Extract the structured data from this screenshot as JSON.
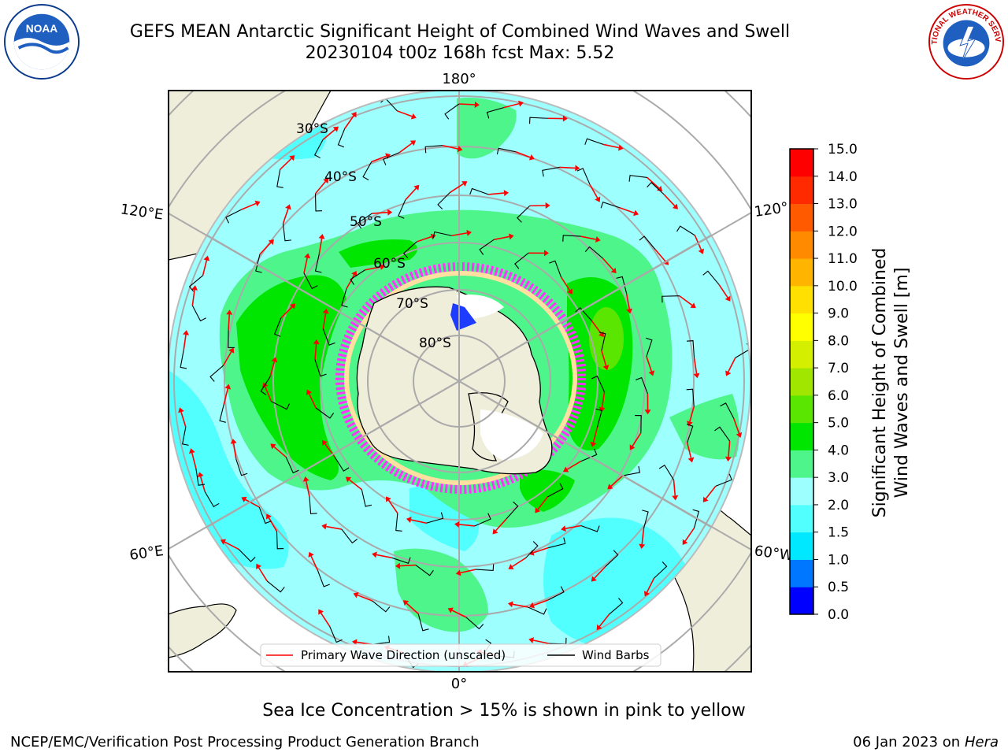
{
  "title_line1": "GEFS MEAN Antarctic Significant Height of Combined Wind Waves and Swell",
  "title_line2": "20230104 t00z 168h fcst   Max: 5.52",
  "logos": {
    "left": "NOAA",
    "right": "NATIONAL WEATHER SERVICE"
  },
  "longitude_labels": {
    "top": "180°",
    "bottom": "0°",
    "left_upper": "120°E",
    "left_lower": "60°E",
    "right_upper": "120°",
    "right_lower": "60°W"
  },
  "latitude_labels": [
    "30°S",
    "40°S",
    "50°S",
    "60°S",
    "70°S",
    "80°S"
  ],
  "legend": {
    "wave_direction": "Primary Wave Direction (unscaled)",
    "wind_barbs": "Wind Barbs"
  },
  "colorbar": {
    "label_line1": "Significant Height of Combined",
    "label_line2": "Wind Waves and Swell [m]",
    "ticks": [
      "0.0",
      "0.5",
      "1.0",
      "1.5",
      "2.0",
      "3.0",
      "4.0",
      "5.0",
      "6.0",
      "7.0",
      "8.0",
      "9.0",
      "10.0",
      "11.0",
      "12.0",
      "13.0",
      "14.0",
      "15.0"
    ],
    "colors": [
      "#0000ff",
      "#0077ff",
      "#00e8ff",
      "#52ffff",
      "#9effff",
      "#4df58a",
      "#00e600",
      "#5ae600",
      "#a0e600",
      "#d4f000",
      "#ffff00",
      "#ffe000",
      "#ffb400",
      "#ff8a00",
      "#ff5a00",
      "#ff2a00",
      "#ff0000"
    ]
  },
  "note": "Sea Ice Concentration > 15% is shown in pink to yellow",
  "footer_left": "NCEP/EMC/Verification Post Processing Product Generation Branch",
  "footer_right_date": "06 Jan 2023 on ",
  "footer_right_host": "Hera",
  "colors": {
    "ocean_light": "#9effff",
    "land": "#efeedb",
    "wave_arrow": "#ff0000",
    "wind_barb": "#000000",
    "sea_ice": "#ff33ff"
  }
}
